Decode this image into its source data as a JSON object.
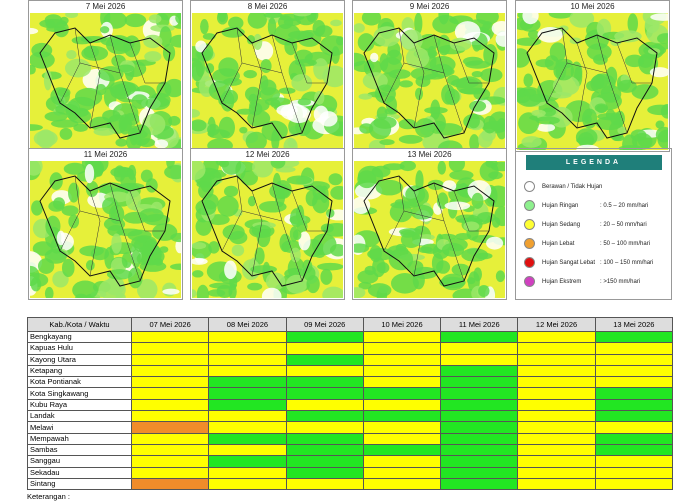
{
  "maps": [
    {
      "title": "7 Mei 2026"
    },
    {
      "title": "8 Mei 2026"
    },
    {
      "title": "9 Mei 2026"
    },
    {
      "title": "10 Mei 2026"
    },
    {
      "title": "11 Mei 2026"
    },
    {
      "title": "12 Mei 2026"
    },
    {
      "title": "13 Mei 2026"
    }
  ],
  "legend": {
    "title": "LEGENDA",
    "items": [
      {
        "label": "Berawan / Tidak Hujan",
        "color": "#ffffff"
      },
      {
        "label": "Hujan Ringan",
        "range": ": 0.5 – 20 mm/hari",
        "color": "#8ef08e"
      },
      {
        "label": "Hujan Sedang",
        "range": ": 20 – 50 mm/hari",
        "color": "#ffff33"
      },
      {
        "label": "Hujan Lebat",
        "range": ": 50 – 100 mm/hari",
        "color": "#f0a030"
      },
      {
        "label": "Hujan Sangat Lebat",
        "range": ": 100 – 150 mm/hari",
        "color": "#e01010"
      },
      {
        "label": "Hujan Ekstrem",
        "range": ": >150 mm/hari",
        "color": "#d040c0"
      }
    ]
  },
  "table": {
    "header": [
      "Kab./Kota / Waktu",
      "07 Mei 2026",
      "08 Mei 2026",
      "09 Mei 2026",
      "10 Mei 2026",
      "11 Mei 2026",
      "12 Mei 2026",
      "13 Mei 2026"
    ],
    "rows": [
      {
        "name": "Bengkayang",
        "cells": [
          "#ffff00",
          "#ffff00",
          "#22e622",
          "#ffff00",
          "#22e622",
          "#ffff00",
          "#22e622"
        ]
      },
      {
        "name": "Kapuas Hulu",
        "cells": [
          "#ffff00",
          "#ffff00",
          "#ffff00",
          "#ffff00",
          "#ffff00",
          "#ffff00",
          "#ffff00"
        ]
      },
      {
        "name": "Kayong Utara",
        "cells": [
          "#ffff00",
          "#ffff00",
          "#22e622",
          "#ffff00",
          "#ffff00",
          "#ffff00",
          "#ffff00"
        ]
      },
      {
        "name": "Ketapang",
        "cells": [
          "#ffff00",
          "#ffff00",
          "#ffff00",
          "#ffff00",
          "#22e622",
          "#ffff00",
          "#ffff00"
        ]
      },
      {
        "name": "Kota Pontianak",
        "cells": [
          "#ffff00",
          "#22e622",
          "#22e622",
          "#ffff00",
          "#22e622",
          "#ffff00",
          "#ffff00"
        ]
      },
      {
        "name": "Kota Singkawang",
        "cells": [
          "#ffff00",
          "#22e622",
          "#22e622",
          "#22e622",
          "#22e622",
          "#ffff00",
          "#22e622"
        ]
      },
      {
        "name": "Kubu Raya",
        "cells": [
          "#ffff00",
          "#22e622",
          "#ffff00",
          "#ffff00",
          "#22e622",
          "#ffff00",
          "#22e622"
        ]
      },
      {
        "name": "Landak",
        "cells": [
          "#ffff00",
          "#ffff00",
          "#22e622",
          "#22e622",
          "#22e622",
          "#ffff00",
          "#22e622"
        ]
      },
      {
        "name": "Melawi",
        "cells": [
          "#f08c2a",
          "#ffff00",
          "#ffff00",
          "#ffff00",
          "#22e622",
          "#ffff00",
          "#ffff00"
        ]
      },
      {
        "name": "Mempawah",
        "cells": [
          "#ffff00",
          "#22e622",
          "#22e622",
          "#ffff00",
          "#22e622",
          "#ffff00",
          "#22e622"
        ]
      },
      {
        "name": "Sambas",
        "cells": [
          "#ffff00",
          "#ffff00",
          "#22e622",
          "#22e622",
          "#22e622",
          "#ffff00",
          "#22e622"
        ]
      },
      {
        "name": "Sanggau",
        "cells": [
          "#ffff00",
          "#22e622",
          "#22e622",
          "#ffff00",
          "#22e622",
          "#ffff00",
          "#ffff00"
        ]
      },
      {
        "name": "Sekadau",
        "cells": [
          "#ffff00",
          "#ffff00",
          "#22e622",
          "#ffff00",
          "#22e622",
          "#ffff00",
          "#ffff00"
        ]
      },
      {
        "name": "Sintang",
        "cells": [
          "#f08c2a",
          "#ffff00",
          "#ffff00",
          "#ffff00",
          "#22e622",
          "#ffff00",
          "#ffff00"
        ]
      }
    ]
  },
  "footer": "Keterangan :"
}
